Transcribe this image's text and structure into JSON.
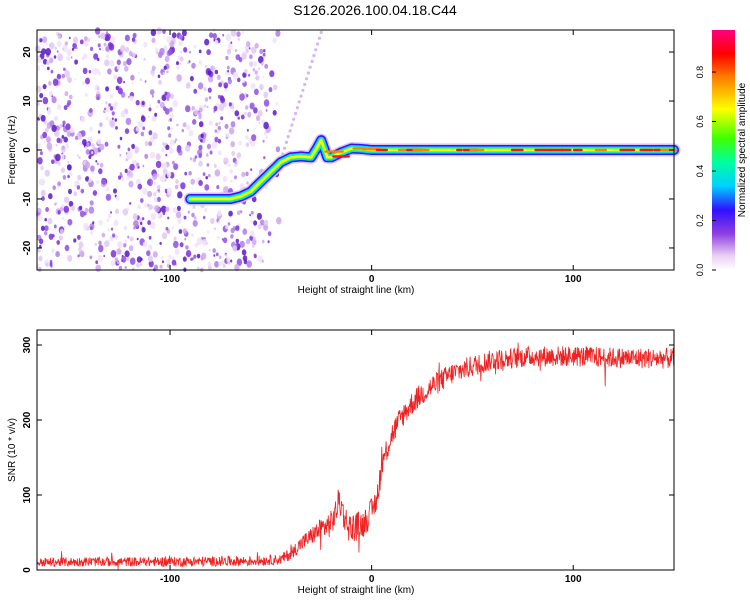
{
  "title": "S126.2026.100.04.18.C44",
  "chart_data": [
    {
      "type": "heatmap",
      "name": "spectrogram",
      "xlabel": "Height of straight line (km)",
      "ylabel": "Frequency (Hz)",
      "xlim": [
        -166,
        150
      ],
      "ylim": [
        -24.5,
        24.5
      ],
      "xticks": [
        "-100",
        "0",
        "100"
      ],
      "xtick_values": [
        -100,
        0,
        100
      ],
      "yticks": [
        "-20",
        "-10",
        "0",
        "10",
        "20"
      ],
      "ytick_values": [
        -20,
        -10,
        0,
        10,
        20
      ],
      "noise_region_km": [
        -166,
        -52
      ],
      "ridge": {
        "x": [
          -90,
          -80,
          -70,
          -65,
          -60,
          -55,
          -50,
          -45,
          -40,
          -35,
          -30,
          -27,
          -25,
          -22,
          -20,
          -15,
          -10,
          -5,
          0,
          20,
          40,
          60,
          80,
          100,
          120,
          140,
          150
        ],
        "y": [
          -10,
          -10,
          -10,
          -9.5,
          -8.5,
          -6.5,
          -4.5,
          -2.5,
          -1.5,
          -1.3,
          -1.5,
          0.5,
          2,
          -1.5,
          -1.5,
          -0.5,
          0.3,
          0.2,
          0,
          0,
          0,
          0,
          0,
          0,
          0,
          0,
          0
        ]
      },
      "upper_streak": {
        "x": [
          -45,
          -25
        ],
        "y": [
          -2,
          24
        ]
      },
      "colorbar": {
        "label": "Normalized spectral amplitude",
        "ticks": [
          "0.0",
          "0.2",
          "0.4",
          "0.6",
          "0.8"
        ],
        "tick_values": [
          0,
          0.2,
          0.4,
          0.6,
          0.8
        ],
        "range": [
          0,
          0.97
        ],
        "colors": [
          "#ffffff",
          "#e8d0f4",
          "#9040e0",
          "#3010ff",
          "#00d0ff",
          "#00ff80",
          "#80ff00",
          "#ffff00",
          "#ff8000",
          "#ff0000",
          "#ff0080"
        ]
      }
    },
    {
      "type": "line",
      "name": "snr",
      "xlabel": "Height of straight line (km)",
      "ylabel": "SNR (10 * v/v)",
      "xlim": [
        -166,
        150
      ],
      "ylim": [
        0,
        320
      ],
      "xticks": [
        "-100",
        "0",
        "100"
      ],
      "xtick_values": [
        -100,
        0,
        100
      ],
      "yticks": [
        "0",
        "100",
        "200",
        "300"
      ],
      "ytick_values": [
        0,
        100,
        200,
        300
      ],
      "color": "#ee2222",
      "trend": {
        "x": [
          -166,
          -140,
          -100,
          -60,
          -45,
          -40,
          -35,
          -30,
          -25,
          -20,
          -18,
          -16,
          -14,
          -12,
          -10,
          -8,
          -6,
          -4,
          -2,
          0,
          2,
          4,
          6,
          10,
          15,
          20,
          25,
          30,
          40,
          50,
          60,
          80,
          100,
          120,
          150
        ],
        "y": [
          10,
          11,
          11,
          12,
          14,
          22,
          35,
          45,
          55,
          62,
          75,
          95,
          75,
          60,
          55,
          58,
          60,
          62,
          70,
          78,
          90,
          120,
          150,
          180,
          205,
          222,
          235,
          245,
          262,
          272,
          280,
          285,
          285,
          283,
          282
        ]
      },
      "noise_amplitude": {
        "x": [
          -166,
          -45,
          -30,
          -20,
          -10,
          0,
          20,
          60,
          150
        ],
        "y": [
          6,
          7,
          12,
          18,
          20,
          18,
          16,
          14,
          14
        ]
      }
    }
  ]
}
